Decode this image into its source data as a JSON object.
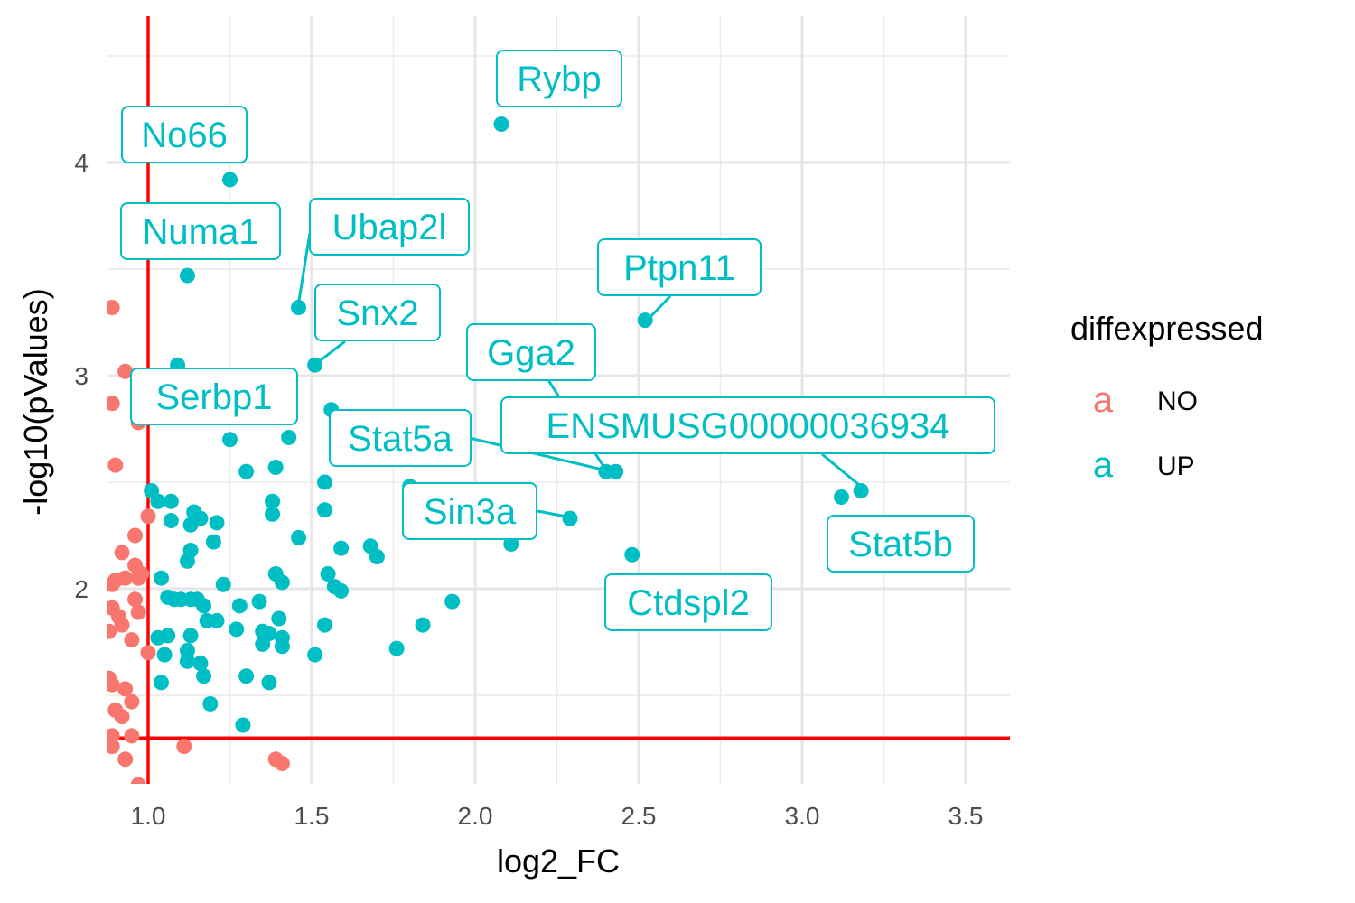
{
  "chart_data": {
    "type": "scatter",
    "title": "",
    "xlabel": "log2_FC",
    "ylabel": "-log10(pValues)",
    "xlim": [
      0.88,
      3.62
    ],
    "ylim": [
      1.1,
      4.6
    ],
    "x_ticks": [
      1.0,
      1.5,
      2.0,
      2.5,
      3.0,
      3.5
    ],
    "x_tick_labels": [
      "1.0",
      "1.5",
      "2.0",
      "2.5",
      "3.0",
      "3.5"
    ],
    "y_ticks": [
      2,
      3,
      4
    ],
    "y_tick_labels": [
      "2",
      "3",
      "4"
    ],
    "grid": true,
    "thresholds": {
      "x": 1.0,
      "y": 1.3,
      "color": "#ff0000"
    },
    "legend": {
      "title": "diffexpressed",
      "placement": "right",
      "key_glyph": "a",
      "entries": [
        {
          "label": "NO",
          "color": "#F8766D"
        },
        {
          "label": "UP",
          "color": "#00BFC4"
        }
      ]
    },
    "series": [
      {
        "name": "NO",
        "color": "#F8766D",
        "points": [
          [
            0.89,
            3.32
          ],
          [
            0.93,
            3.02
          ],
          [
            0.89,
            2.87
          ],
          [
            0.9,
            2.58
          ],
          [
            0.97,
            2.78
          ],
          [
            1.0,
            2.34
          ],
          [
            0.96,
            2.25
          ],
          [
            0.92,
            2.17
          ],
          [
            0.96,
            2.11
          ],
          [
            0.98,
            2.07
          ],
          [
            0.97,
            2.05
          ],
          [
            0.93,
            2.05
          ],
          [
            0.9,
            2.04
          ],
          [
            0.89,
            2.02
          ],
          [
            0.96,
            1.95
          ],
          [
            0.89,
            1.91
          ],
          [
            0.97,
            1.89
          ],
          [
            0.91,
            1.87
          ],
          [
            0.92,
            1.83
          ],
          [
            0.88,
            1.8
          ],
          [
            0.95,
            1.76
          ],
          [
            1.0,
            1.7
          ],
          [
            0.88,
            1.58
          ],
          [
            0.89,
            1.55
          ],
          [
            0.93,
            1.53
          ],
          [
            0.95,
            1.47
          ],
          [
            0.9,
            1.43
          ],
          [
            0.92,
            1.4
          ],
          [
            0.89,
            1.31
          ],
          [
            0.95,
            1.31
          ],
          [
            0.89,
            1.26
          ],
          [
            0.93,
            1.2
          ],
          [
            1.11,
            1.26
          ],
          [
            1.39,
            1.2
          ],
          [
            1.41,
            1.18
          ],
          [
            0.97,
            1.08
          ]
        ]
      },
      {
        "name": "UP",
        "color": "#00BFC4",
        "points": [
          [
            2.08,
            4.18
          ],
          [
            1.25,
            3.92
          ],
          [
            1.12,
            3.47
          ],
          [
            1.46,
            3.32
          ],
          [
            2.52,
            3.26
          ],
          [
            1.51,
            3.05
          ],
          [
            1.09,
            3.05
          ],
          [
            1.56,
            2.84
          ],
          [
            1.43,
            2.71
          ],
          [
            1.25,
            2.7
          ],
          [
            1.39,
            2.57
          ],
          [
            1.3,
            2.55
          ],
          [
            1.54,
            2.5
          ],
          [
            2.4,
            2.55
          ],
          [
            2.43,
            2.55
          ],
          [
            1.8,
            2.48
          ],
          [
            3.18,
            2.46
          ],
          [
            3.12,
            2.43
          ],
          [
            1.01,
            2.46
          ],
          [
            1.03,
            2.41
          ],
          [
            1.07,
            2.41
          ],
          [
            1.38,
            2.41
          ],
          [
            1.14,
            2.36
          ],
          [
            1.54,
            2.37
          ],
          [
            1.38,
            2.35
          ],
          [
            2.29,
            2.33
          ],
          [
            1.07,
            2.32
          ],
          [
            1.16,
            2.33
          ],
          [
            1.13,
            2.3
          ],
          [
            1.21,
            2.31
          ],
          [
            1.46,
            2.24
          ],
          [
            1.2,
            2.22
          ],
          [
            2.11,
            2.21
          ],
          [
            1.68,
            2.2
          ],
          [
            1.59,
            2.19
          ],
          [
            1.7,
            2.15
          ],
          [
            2.48,
            2.16
          ],
          [
            1.13,
            2.18
          ],
          [
            1.12,
            2.13
          ],
          [
            1.55,
            2.07
          ],
          [
            1.39,
            2.07
          ],
          [
            1.04,
            2.05
          ],
          [
            1.23,
            2.02
          ],
          [
            1.41,
            2.03
          ],
          [
            1.57,
            2.01
          ],
          [
            1.59,
            1.99
          ],
          [
            1.06,
            1.96
          ],
          [
            1.08,
            1.95
          ],
          [
            1.1,
            1.95
          ],
          [
            1.13,
            1.95
          ],
          [
            1.15,
            1.95
          ],
          [
            1.34,
            1.94
          ],
          [
            1.93,
            1.94
          ],
          [
            1.17,
            1.92
          ],
          [
            1.28,
            1.92
          ],
          [
            1.4,
            1.86
          ],
          [
            1.18,
            1.85
          ],
          [
            1.21,
            1.85
          ],
          [
            1.54,
            1.83
          ],
          [
            1.84,
            1.83
          ],
          [
            1.27,
            1.81
          ],
          [
            1.35,
            1.8
          ],
          [
            1.37,
            1.79
          ],
          [
            1.03,
            1.77
          ],
          [
            1.06,
            1.78
          ],
          [
            1.13,
            1.78
          ],
          [
            1.41,
            1.77
          ],
          [
            1.35,
            1.74
          ],
          [
            1.41,
            1.73
          ],
          [
            1.76,
            1.72
          ],
          [
            1.12,
            1.71
          ],
          [
            1.05,
            1.69
          ],
          [
            1.51,
            1.69
          ],
          [
            1.12,
            1.66
          ],
          [
            1.16,
            1.65
          ],
          [
            1.17,
            1.59
          ],
          [
            1.3,
            1.59
          ],
          [
            1.04,
            1.56
          ],
          [
            1.37,
            1.56
          ],
          [
            1.19,
            1.46
          ],
          [
            1.29,
            1.36
          ]
        ]
      }
    ],
    "annotations": [
      {
        "text": "Rybp",
        "point": [
          2.08,
          4.18
        ]
      },
      {
        "text": "No66",
        "point": [
          1.25,
          3.92
        ]
      },
      {
        "text": "Numa1",
        "point": [
          1.12,
          3.47
        ]
      },
      {
        "text": "Ubap2l",
        "point": [
          1.46,
          3.32
        ]
      },
      {
        "text": "Ptpn11",
        "point": [
          2.52,
          3.26
        ]
      },
      {
        "text": "Snx2",
        "point": [
          1.51,
          3.05
        ]
      },
      {
        "text": "Gga2",
        "point": [
          2.4,
          2.55
        ]
      },
      {
        "text": "Serbp1",
        "point": [
          1.25,
          2.7
        ]
      },
      {
        "text": "Stat5a",
        "point": [
          2.4,
          2.55
        ]
      },
      {
        "text": "ENSMUSG00000036934",
        "point": [
          3.18,
          2.46
        ]
      },
      {
        "text": "Sin3a",
        "point": [
          2.29,
          2.33
        ]
      },
      {
        "text": "Stat5b",
        "point": [
          3.18,
          2.46
        ]
      },
      {
        "text": "Ctdspl2",
        "point": [
          2.48,
          2.16
        ]
      }
    ]
  }
}
